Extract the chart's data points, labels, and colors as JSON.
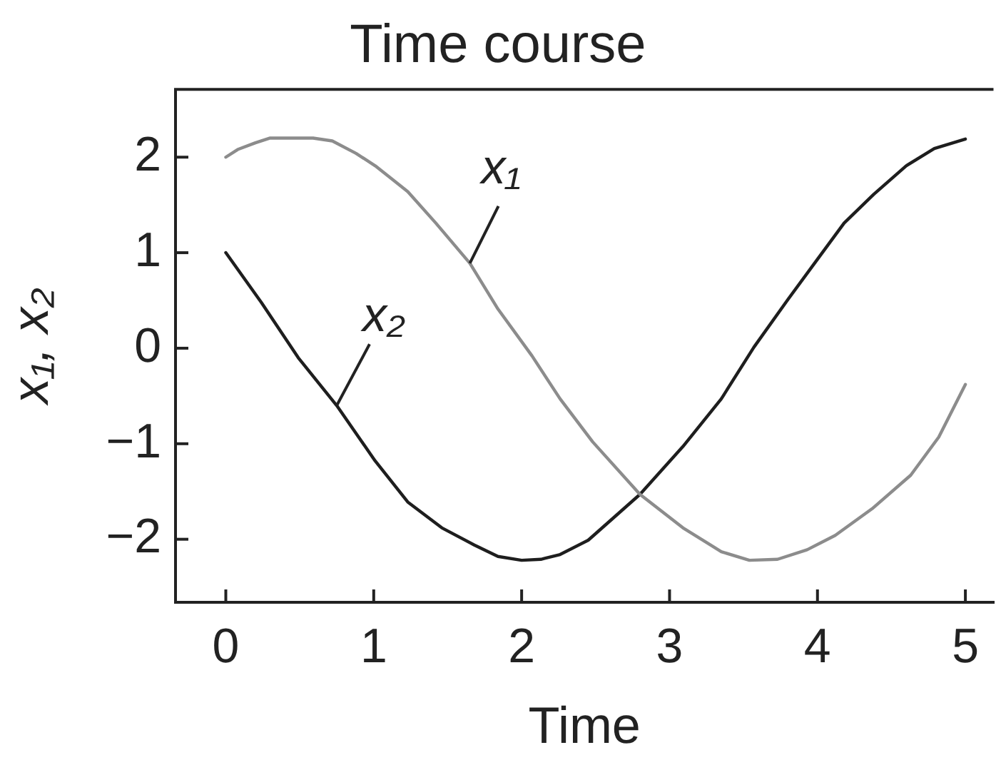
{
  "chart_data": {
    "type": "line",
    "title": "Time course",
    "xlabel": "Time",
    "ylabel": "x₁, x₂",
    "xlim": [
      -0.34,
      5.19
    ],
    "xticks": [
      0,
      1,
      2,
      3,
      4,
      5
    ],
    "ylim": [
      -2.66,
      2.71
    ],
    "yticks": [
      -2,
      -1,
      0,
      1,
      2
    ],
    "grid": false,
    "legend": false,
    "marker": "none",
    "series": [
      {
        "name": "x₁",
        "color": "#8c8c8c",
        "x": [
          0,
          0.08,
          0.2,
          0.3,
          0.45,
          0.59,
          0.72,
          0.88,
          1.01,
          1.23,
          1.42,
          1.65,
          1.84,
          2.07,
          2.26,
          2.48,
          2.8,
          3.09,
          3.35,
          3.54,
          3.73,
          3.93,
          4.12,
          4.37,
          4.63,
          4.82,
          5.0
        ],
        "values": [
          2.0,
          2.08,
          2.15,
          2.2,
          2.2,
          2.2,
          2.17,
          2.04,
          1.91,
          1.64,
          1.31,
          0.89,
          0.41,
          -0.08,
          -0.53,
          -0.98,
          -1.53,
          -1.88,
          -2.13,
          -2.22,
          -2.21,
          -2.11,
          -1.96,
          -1.68,
          -1.33,
          -0.93,
          -0.38
        ]
      },
      {
        "name": "x₂",
        "color": "#1e1e1e",
        "x": [
          0,
          0.24,
          0.49,
          0.75,
          1.01,
          1.23,
          1.46,
          1.68,
          1.84,
          2.0,
          2.13,
          2.26,
          2.45,
          2.8,
          3.09,
          3.35,
          3.57,
          3.8,
          3.99,
          4.18,
          4.38,
          4.6,
          4.79,
          5.0
        ],
        "values": [
          1.0,
          0.48,
          -0.1,
          -0.6,
          -1.18,
          -1.61,
          -1.88,
          -2.06,
          -2.18,
          -2.22,
          -2.21,
          -2.16,
          -2.01,
          -1.53,
          -1.03,
          -0.53,
          0.01,
          0.51,
          0.91,
          1.31,
          1.61,
          1.91,
          2.09,
          2.19
        ]
      }
    ]
  }
}
